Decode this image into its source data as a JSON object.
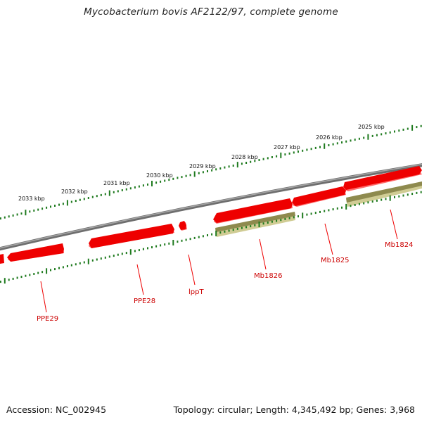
{
  "title": "Mycobacterium bovis AF2122/97, complete genome",
  "footer": {
    "accession": "Accession: NC_002945",
    "stats": "Topology: circular; Length: 4,345,492 bp; Genes: 3,968"
  },
  "ruler_labels": [
    "2025 kbp",
    "2026 kbp",
    "2027 kbp",
    "2028 kbp",
    "2029 kbp",
    "2030 kbp",
    "2031 kbp",
    "2032 kbp",
    "2033 kbp"
  ],
  "gene_labels": [
    "Mb1824",
    "Mb1825",
    "Mb1826",
    "lppT",
    "PPE28",
    "PPE29"
  ],
  "colors": {
    "genome_line": "#808080",
    "cds": "#ee0000",
    "cds_shadow": "#ff7070",
    "gene": "#b8b478",
    "gene_dark": "#7a7640",
    "ticks": "#1e7a1e",
    "label": "#cc0000"
  }
}
